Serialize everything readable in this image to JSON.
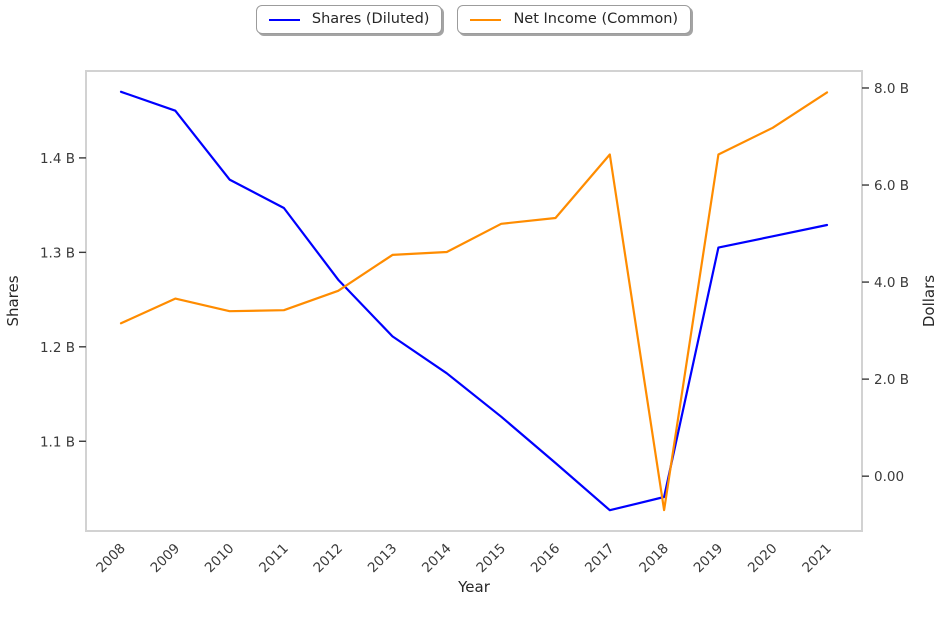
{
  "chart_data": {
    "type": "line",
    "title": "",
    "xlabel": "Year",
    "ylabel_left": "Shares",
    "ylabel_right": "Dollars",
    "x": [
      2008,
      2009,
      2010,
      2011,
      2012,
      2013,
      2014,
      2015,
      2016,
      2017,
      2018,
      2019,
      2020,
      2021
    ],
    "x_tick_labels": [
      "2008",
      "2009",
      "2010",
      "2011",
      "2012",
      "2013",
      "2014",
      "2015",
      "2016",
      "2017",
      "2018",
      "2019",
      "2020",
      "2021"
    ],
    "series": [
      {
        "name": "Shares (Diluted)",
        "axis": "left",
        "color": "#0000ff",
        "unit": "billions of shares",
        "values": [
          1.47,
          1.45,
          1.377,
          1.347,
          1.271,
          1.211,
          1.172,
          1.126,
          1.077,
          1.027,
          1.041,
          1.305,
          1.317,
          1.329
        ]
      },
      {
        "name": "Net Income (Common)",
        "axis": "right",
        "color": "#ff8c00",
        "unit": "billions of dollars",
        "values": [
          3.15,
          3.66,
          3.4,
          3.42,
          3.82,
          4.56,
          4.62,
          5.2,
          5.32,
          6.63,
          -0.7,
          6.63,
          7.18,
          7.91
        ]
      }
    ],
    "left_axis": {
      "label": "Shares",
      "tick_labels": [
        "1.1 B",
        "1.2 B",
        "1.3 B",
        "1.4 B"
      ],
      "tick_values": [
        1.1,
        1.2,
        1.3,
        1.4
      ],
      "ylim": [
        1.005,
        1.492
      ]
    },
    "right_axis": {
      "label": "Dollars",
      "tick_labels": [
        "0.00",
        "2.0 B",
        "4.0 B",
        "6.0 B",
        "8.0 B"
      ],
      "tick_values": [
        0,
        2,
        4,
        6,
        8
      ],
      "ylim": [
        -1.13,
        8.35
      ]
    },
    "grid": false,
    "legend_position": "top-center"
  },
  "legend": {
    "items": [
      {
        "label": "Shares (Diluted)",
        "color": "#0000ff"
      },
      {
        "label": "Net Income (Common)",
        "color": "#ff8c00"
      }
    ]
  }
}
